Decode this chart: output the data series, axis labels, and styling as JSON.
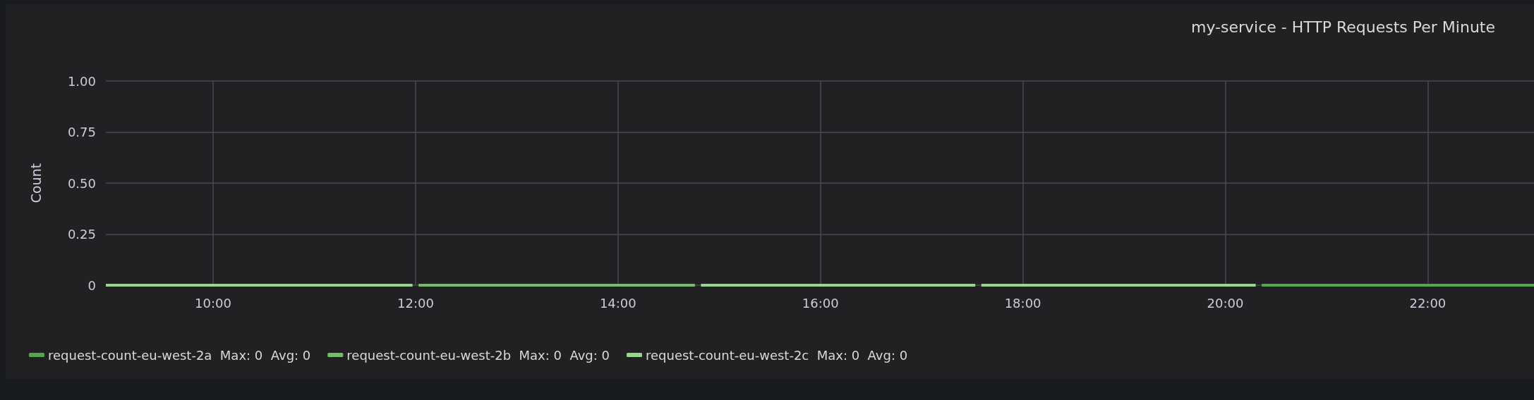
{
  "chart_data": {
    "type": "line",
    "title": "my-service - HTTP Requests Per Minute",
    "ylabel": "Count",
    "xlim": [
      8.94,
      23.05
    ],
    "xticks": [
      {
        "value": 10,
        "label": "10:00"
      },
      {
        "value": 12,
        "label": "12:00"
      },
      {
        "value": 14,
        "label": "14:00"
      },
      {
        "value": 16,
        "label": "16:00"
      },
      {
        "value": 18,
        "label": "18:00"
      },
      {
        "value": 20,
        "label": "20:00"
      },
      {
        "value": 22,
        "label": "22:00"
      }
    ],
    "ylim": [
      0,
      1
    ],
    "yticks": [
      0,
      {
        "value": 0.25,
        "label": "0.25"
      },
      {
        "value": 0.5,
        "label": "0.50"
      },
      {
        "value": 0.75,
        "label": "0.75"
      },
      {
        "value": 1,
        "label": "1.00"
      }
    ],
    "grid": true,
    "legend": "bottom left",
    "marker": "none",
    "line_style": "solid",
    "series": [
      {
        "name": "request-count-eu-west-2a  Max: 0  Avg: 0",
        "color": "#56a64b",
        "x": [
          20.36,
          23.05
        ],
        "values": [
          0,
          0
        ]
      },
      {
        "name": "request-count-eu-west-2b  Max: 0  Avg: 0",
        "color": "#73bf69",
        "x": [
          12.03,
          14.76
        ],
        "values": [
          0,
          0
        ]
      },
      {
        "name": "request-count-eu-west-2c  Max: 0  Avg: 0",
        "color": "#96d98d",
        "x": [
          8.94,
          11.97,
          12.0,
          14.82,
          17.53,
          17.56,
          17.59,
          20.3
        ],
        "values": [
          0,
          0,
          null,
          0,
          0,
          null,
          0,
          0
        ]
      }
    ]
  }
}
